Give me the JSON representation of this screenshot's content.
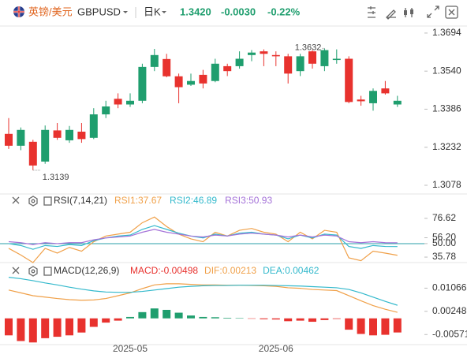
{
  "header": {
    "name": "英镑/美元",
    "symbol": "GBPUSD",
    "period": "日K",
    "price": "1.3420",
    "change": "-0.0030",
    "change_pct": "-0.22%"
  },
  "chart_data": [
    {
      "type": "candlestick",
      "categories": [
        null,
        null,
        null,
        null,
        null,
        null,
        null,
        null,
        null,
        null,
        "2025-05",
        null,
        null,
        null,
        null,
        null,
        null,
        null,
        null,
        null,
        null,
        null,
        "2025-06",
        null,
        null,
        null,
        null,
        null,
        null,
        null,
        null,
        null,
        null
      ],
      "open": [
        1.3286,
        1.3238,
        1.3254,
        1.3174,
        1.33,
        1.326,
        1.3295,
        1.327,
        1.3365,
        1.3428,
        1.3405,
        1.342,
        1.3557,
        1.3589,
        1.3519,
        1.3485,
        1.3525,
        1.35,
        1.356,
        1.356,
        1.3605,
        1.362,
        1.3605,
        1.36,
        1.354,
        1.362,
        1.356,
        1.3585,
        1.359,
        1.3425,
        1.341,
        1.347,
        1.3405
      ],
      "high": [
        1.335,
        1.3312,
        1.3262,
        1.332,
        1.333,
        1.3318,
        1.333,
        1.339,
        1.342,
        1.345,
        1.345,
        1.357,
        1.363,
        1.361,
        1.353,
        1.353,
        1.3545,
        1.359,
        1.357,
        1.362,
        1.3625,
        1.3628,
        1.362,
        1.361,
        1.361,
        1.3625,
        1.3632,
        1.3628,
        1.36,
        1.344,
        1.347,
        1.35,
        1.344
      ],
      "low": [
        1.3225,
        1.322,
        1.3139,
        1.3165,
        1.3262,
        1.325,
        1.325,
        1.3265,
        1.335,
        1.339,
        1.3395,
        1.341,
        1.354,
        1.3515,
        1.341,
        1.348,
        1.347,
        1.3495,
        1.352,
        1.355,
        1.358,
        1.356,
        1.356,
        1.349,
        1.352,
        1.355,
        1.354,
        1.357,
        1.341,
        1.34,
        1.338,
        1.3445,
        1.3395
      ],
      "close": [
        1.3238,
        1.3302,
        1.3158,
        1.3302,
        1.327,
        1.3302,
        1.3265,
        1.3365,
        1.3397,
        1.3405,
        1.342,
        1.3557,
        1.3605,
        1.3519,
        1.3475,
        1.35,
        1.349,
        1.357,
        1.354,
        1.359,
        1.3615,
        1.361,
        1.36,
        1.353,
        1.36,
        1.357,
        1.3625,
        1.359,
        1.3415,
        1.3418,
        1.346,
        1.345,
        1.342
      ],
      "up_color": "#1f9e6e",
      "down_color": "#e8322e",
      "annotations": [
        "1.3632",
        "1.3139"
      ],
      "ylim": [
        1.3046,
        1.3748
      ],
      "yticks": [
        1.3694,
        1.354,
        1.3386,
        1.3232,
        1.3078
      ],
      "ytick_labels": [
        "1.3694",
        "1.3540",
        "1.3386",
        "1.3232",
        "1.3078"
      ]
    },
    {
      "type": "line",
      "title": "RSI(7,14,21)",
      "series": [
        {
          "name": "RSI1:37.67",
          "color": "#f0a048",
          "values": [
            45,
            38,
            30,
            45,
            40,
            46,
            42,
            52,
            58,
            60,
            62,
            72,
            78,
            68,
            60,
            55,
            52,
            62,
            58,
            64,
            66,
            62,
            60,
            52,
            62,
            55,
            64,
            62,
            35,
            32,
            42,
            40,
            37.67
          ]
        },
        {
          "name": "RSI2:46.89",
          "color": "#33b9cc",
          "values": [
            50,
            48,
            44,
            48,
            47,
            49,
            48,
            53,
            56,
            58,
            59,
            65,
            69,
            65,
            61,
            58,
            56,
            60,
            58,
            61,
            62,
            60,
            59,
            55,
            59,
            56,
            60,
            59,
            47,
            45,
            48,
            47,
            46.89
          ]
        },
        {
          "name": "RSI3:50.93",
          "color": "#a472d8",
          "values": [
            52,
            51,
            49,
            51,
            50,
            51,
            51,
            54,
            56,
            57,
            58,
            62,
            65,
            62,
            60,
            58,
            57,
            59,
            58,
            60,
            61,
            60,
            59,
            57,
            59,
            57,
            59,
            58,
            52,
            51,
            52,
            51,
            50.93
          ]
        }
      ],
      "hline": 50,
      "hline_color": "#2a9fa8",
      "ylim": [
        32.5,
        89
      ],
      "yticks": [
        76.62,
        {
          "value": 56.2,
          "label": "56.20"
        },
        {
          "value": 50,
          "label": "50.00"
        },
        35.78
      ]
    },
    {
      "type": "macd",
      "title": "MACD(12,26,9)",
      "series": [
        {
          "name": "MACD:-0.00498",
          "mark": "bar",
          "color": "#e8322e",
          "up_color": "#1f9e6e",
          "values": [
            -0.006,
            -0.008,
            -0.0085,
            -0.007,
            -0.0065,
            -0.006,
            -0.005,
            -0.003,
            -0.0015,
            -0.0008,
            0.0005,
            0.0022,
            0.0035,
            0.003,
            0.002,
            0.001,
            0.0005,
            0.0004,
            0.0002,
            0.0001,
            -0.0001,
            -0.0003,
            -0.0004,
            -0.001,
            -0.0008,
            -0.0012,
            -0.0006,
            -0.0002,
            -0.004,
            -0.0055,
            -0.006,
            -0.0058,
            -0.00498
          ]
        },
        {
          "name": "DIF:0.00213",
          "mark": "line",
          "color": "#f0a048",
          "values": [
            0.01,
            0.009,
            0.008,
            0.0075,
            0.007,
            0.0066,
            0.0064,
            0.0065,
            0.007,
            0.008,
            0.009,
            0.0105,
            0.0118,
            0.0122,
            0.0122,
            0.012,
            0.0118,
            0.0118,
            0.0117,
            0.0117,
            0.0116,
            0.0115,
            0.0113,
            0.0108,
            0.0106,
            0.0102,
            0.01,
            0.0098,
            0.008,
            0.0062,
            0.0045,
            0.0032,
            0.00213
          ]
        },
        {
          "name": "DEA:0.00462",
          "mark": "line",
          "color": "#33b9cc",
          "values": [
            0.0145,
            0.014,
            0.0133,
            0.0125,
            0.0118,
            0.011,
            0.0103,
            0.0097,
            0.0093,
            0.0092,
            0.0092,
            0.0095,
            0.01,
            0.0105,
            0.011,
            0.0113,
            0.0115,
            0.0116,
            0.0116,
            0.0117,
            0.0117,
            0.0117,
            0.0116,
            0.0115,
            0.0114,
            0.0112,
            0.011,
            0.0108,
            0.0102,
            0.009,
            0.0075,
            0.006,
            0.00462
          ]
        }
      ],
      "ylim": [
        -0.00898,
        0.01829
      ],
      "yticks": [
        {
          "value": 0.01066,
          "label": "0.01066"
        },
        {
          "value": 0.00248,
          "label": "0.00248"
        },
        {
          "value": -0.00571,
          "label": "-0.00571"
        }
      ]
    }
  ]
}
